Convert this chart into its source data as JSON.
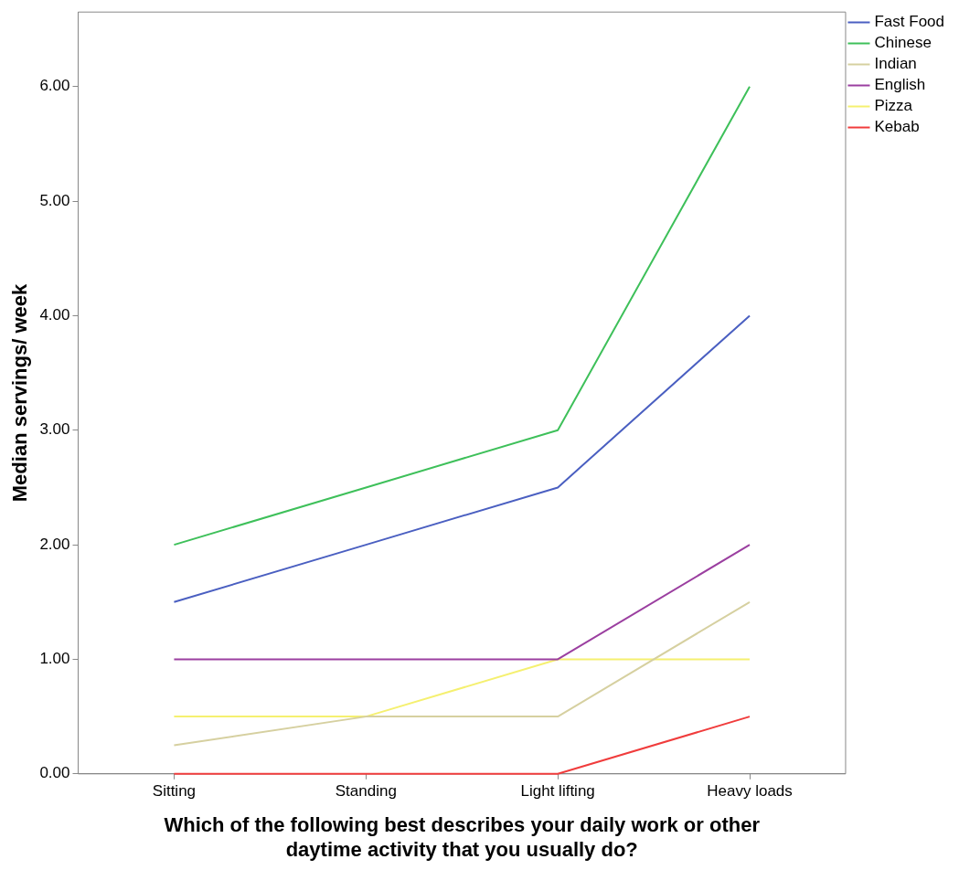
{
  "chart_data": {
    "type": "line",
    "xlabel": "Which of the following best describes your daily work or other daytime activity that you usually do?",
    "ylabel": "Median servings/ week",
    "categories": [
      "Sitting",
      "Standing",
      "Light lifting",
      "Heavy loads"
    ],
    "series": [
      {
        "name": "Fast Food",
        "color": "#4a5fc1",
        "values": [
          1.5,
          2,
          2.5,
          4
        ]
      },
      {
        "name": "Chinese",
        "color": "#3ec05a",
        "values": [
          2,
          2.5,
          3,
          6
        ]
      },
      {
        "name": "Indian",
        "color": "#d6d0a0",
        "values": [
          0.25,
          0.5,
          0.5,
          1.5
        ]
      },
      {
        "name": "English",
        "color": "#9b3fa0",
        "values": [
          1,
          1,
          1,
          2
        ]
      },
      {
        "name": "Pizza",
        "color": "#f5f070",
        "values": [
          0.5,
          0.5,
          1,
          1
        ]
      },
      {
        "name": "Kebab",
        "color": "#f03c3c",
        "values": [
          0,
          0,
          0,
          0.5
        ]
      }
    ],
    "ylim": [
      0,
      6.65
    ],
    "yticks": [
      {
        "value": 0,
        "label": "0.00"
      },
      {
        "value": 1,
        "label": "1.00"
      },
      {
        "value": 2,
        "label": "2.00"
      },
      {
        "value": 3,
        "label": "3.00"
      },
      {
        "value": 4,
        "label": "4.00"
      },
      {
        "value": 5,
        "label": "5.00"
      },
      {
        "value": 6,
        "label": "6.00"
      }
    ],
    "grid": false,
    "legend": "top right",
    "marker": "none",
    "line_style": "solid"
  }
}
